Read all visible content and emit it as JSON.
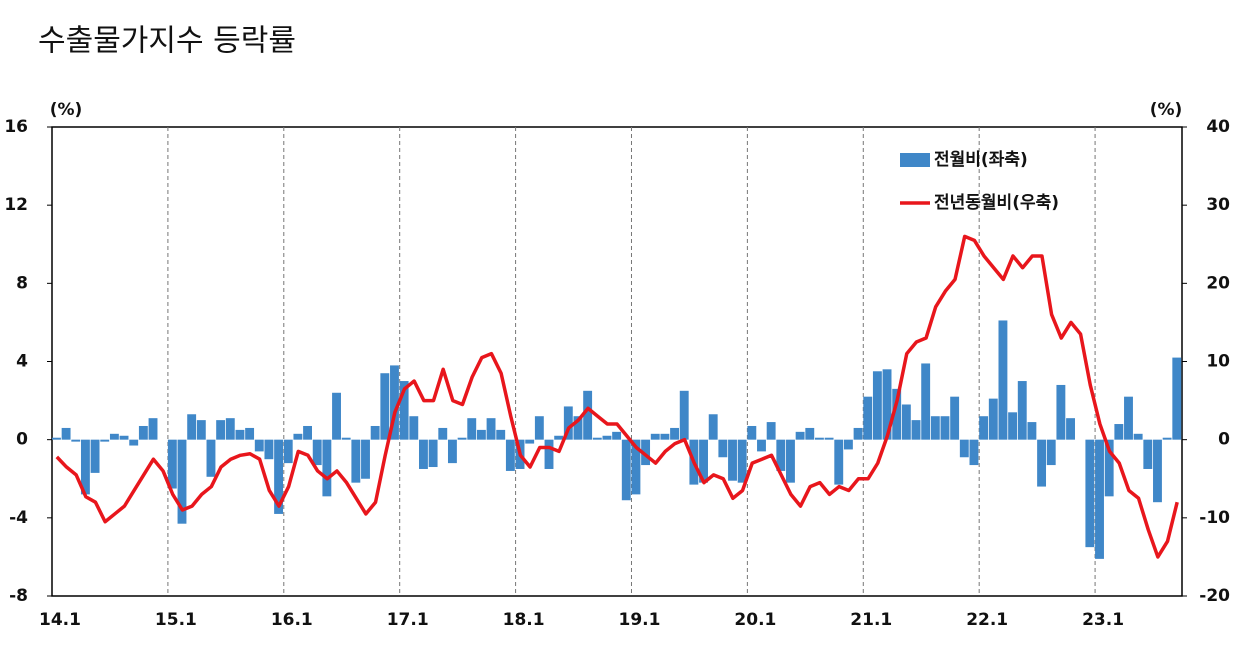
{
  "chart_data": {
    "type": "combo",
    "title": "수출물가지수 등락률",
    "y_label": "(%)",
    "y2_label": "(%)",
    "categories": [
      "14.1",
      null,
      null,
      null,
      null,
      null,
      null,
      null,
      null,
      null,
      null,
      null,
      "15.1",
      null,
      null,
      null,
      null,
      null,
      null,
      null,
      null,
      null,
      null,
      null,
      "16.1",
      null,
      null,
      null,
      null,
      null,
      null,
      null,
      null,
      null,
      null,
      null,
      "17.1",
      null,
      null,
      null,
      null,
      null,
      null,
      null,
      null,
      null,
      null,
      null,
      "18.1",
      null,
      null,
      null,
      null,
      null,
      null,
      null,
      null,
      null,
      null,
      null,
      "19.1",
      null,
      null,
      null,
      null,
      null,
      null,
      null,
      null,
      null,
      null,
      null,
      "20.1",
      null,
      null,
      null,
      null,
      null,
      null,
      null,
      null,
      null,
      null,
      null,
      "21.1",
      null,
      null,
      null,
      null,
      null,
      null,
      null,
      null,
      null,
      null,
      null,
      "22.1",
      null,
      null,
      null,
      null,
      null,
      null,
      null,
      null,
      null,
      null,
      null,
      "23.1",
      null,
      null,
      null,
      null,
      null,
      null,
      null,
      null
    ],
    "series": [
      {
        "name": "전월비(좌축)",
        "type": "bar",
        "axis": "y",
        "color": "#3f87c8",
        "values": [
          0.1,
          0.6,
          -0.1,
          -2.8,
          -1.7,
          -0.1,
          0.3,
          0.2,
          -0.3,
          0.7,
          1.1,
          0.0,
          -2.5,
          -4.3,
          1.3,
          1.0,
          -1.9,
          1.0,
          1.1,
          0.5,
          0.6,
          -0.6,
          -1.0,
          -3.8,
          -1.2,
          0.3,
          0.7,
          -1.3,
          -2.9,
          2.4,
          0.1,
          -2.2,
          -2.0,
          0.7,
          3.4,
          3.8,
          3.0,
          1.2,
          -1.5,
          -1.4,
          0.6,
          -1.2,
          0.1,
          1.1,
          0.5,
          1.1,
          0.5,
          -1.6,
          -1.5,
          -0.2,
          1.2,
          -1.5,
          0.2,
          1.7,
          1.2,
          2.5,
          0.1,
          0.2,
          0.4,
          -3.1,
          -2.8,
          -1.3,
          0.3,
          0.3,
          0.6,
          2.5,
          -2.3,
          -2.2,
          1.3,
          -0.9,
          -2.1,
          -2.2,
          0.7,
          -0.6,
          0.9,
          -1.6,
          -2.2,
          0.4,
          0.6,
          0.1,
          0.1,
          -2.3,
          -0.5,
          0.6,
          2.2,
          3.5,
          3.6,
          2.6,
          1.8,
          1.0,
          3.9,
          1.2,
          1.2,
          2.2,
          -0.9,
          -1.3,
          1.2,
          2.1,
          6.1,
          1.4,
          3.0,
          0.9,
          -2.4,
          -1.3,
          2.8,
          1.1,
          0.0,
          -5.5,
          -6.1,
          -2.9,
          0.8,
          2.2,
          0.3,
          -1.5,
          -3.2,
          0.1,
          4.2
        ]
      },
      {
        "name": "전년동월비(우축)",
        "type": "line",
        "axis": "y2",
        "color": "#e8161c",
        "values": [
          -2.2,
          -3.5,
          -4.5,
          -7.3,
          -8.0,
          -10.5,
          -9.5,
          -8.5,
          -6.5,
          -4.5,
          -2.5,
          -4.0,
          -7.0,
          -9.0,
          -8.5,
          -7.0,
          -6.0,
          -3.5,
          -2.5,
          -2.0,
          -1.8,
          -2.5,
          -6.5,
          -8.5,
          -6.0,
          -1.5,
          -2.0,
          -4.0,
          -5.0,
          -4.0,
          -5.5,
          -7.5,
          -9.5,
          -8.0,
          -2.0,
          3.5,
          6.5,
          7.5,
          5.0,
          5.0,
          9.0,
          5.0,
          4.5,
          8.0,
          10.5,
          11.0,
          8.5,
          3.0,
          -2.0,
          -3.5,
          -1.0,
          -1.0,
          -1.5,
          1.5,
          2.5,
          4.0,
          3.0,
          2.0,
          2.0,
          0.5,
          -1.0,
          -2.0,
          -3.0,
          -1.5,
          -0.5,
          0.0,
          -3.0,
          -5.5,
          -4.5,
          -5.0,
          -7.5,
          -6.5,
          -3.0,
          -2.5,
          -2.0,
          -4.5,
          -7.0,
          -8.5,
          -6.0,
          -5.5,
          -7.0,
          -6.0,
          -6.5,
          -5.0,
          -5.0,
          -3.0,
          0.5,
          5.0,
          11.0,
          12.5,
          13.0,
          17.0,
          19.0,
          20.5,
          26.0,
          25.5,
          23.5,
          22.0,
          20.5,
          23.5,
          22.0,
          23.5,
          23.5,
          16.0,
          13.0,
          15.0,
          13.5,
          7.0,
          2.0,
          -1.5,
          -3.0,
          -6.5,
          -7.5,
          -11.5,
          -15.0,
          -13.0,
          -8.0
        ]
      }
    ],
    "ylim": [
      -8,
      16
    ],
    "yticks": [
      -8,
      -4,
      0,
      4,
      8,
      12,
      16
    ],
    "y2lim": [
      -20,
      40
    ],
    "y2ticks": [
      -20,
      -10,
      0,
      10,
      20,
      30,
      40
    ],
    "legend": "upper right"
  }
}
